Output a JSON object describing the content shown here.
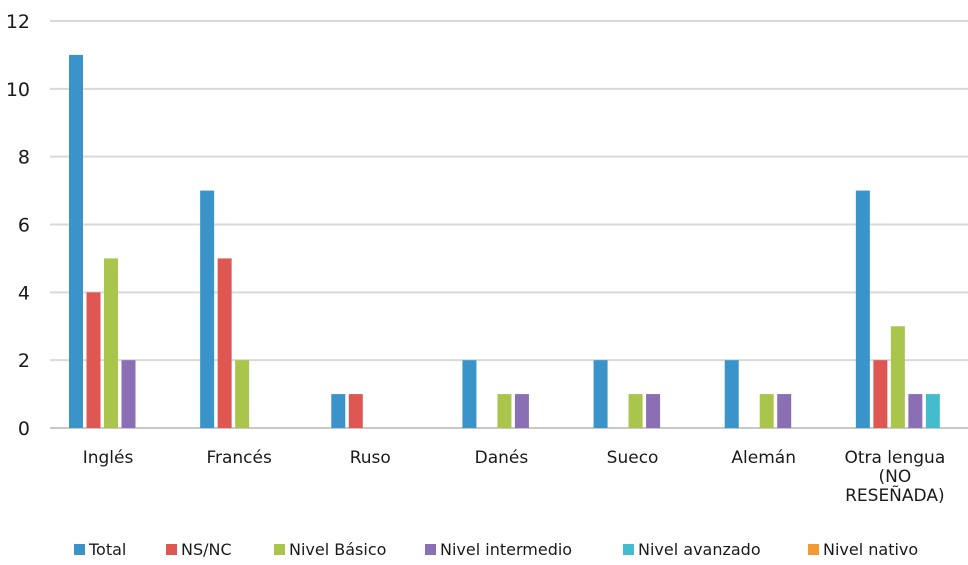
{
  "chart_data": {
    "type": "bar",
    "title": "",
    "xlabel": "",
    "ylabel": "",
    "ylim": [
      0,
      12
    ],
    "yticks": [
      0,
      2,
      4,
      6,
      8,
      10,
      12
    ],
    "grid": true,
    "legend_position": "bottom",
    "categories": [
      [
        "Inglés"
      ],
      [
        "Francés"
      ],
      [
        "Ruso"
      ],
      [
        "Danés"
      ],
      [
        "Sueco"
      ],
      [
        "Alemán"
      ],
      [
        "Otra lengua",
        "(NO",
        "RESEÑADA)"
      ]
    ],
    "series": [
      {
        "name": "Total",
        "color": "#3a93c9",
        "values": [
          11,
          7,
          1,
          2,
          2,
          2,
          7
        ]
      },
      {
        "name": "NS/NC",
        "color": "#df5753",
        "values": [
          4,
          5,
          1,
          0,
          0,
          0,
          2
        ]
      },
      {
        "name": "Nivel Básico",
        "color": "#a9c54c",
        "values": [
          5,
          2,
          0,
          1,
          1,
          1,
          3
        ]
      },
      {
        "name": "Nivel intermedio",
        "color": "#8a6fb4",
        "values": [
          2,
          0,
          0,
          1,
          1,
          1,
          1
        ]
      },
      {
        "name": "Nivel avanzado",
        "color": "#44bccd",
        "values": [
          0,
          0,
          0,
          0,
          0,
          0,
          1
        ]
      },
      {
        "name": "Nivel nativo",
        "color": "#f39a34",
        "values": [
          0,
          0,
          0,
          0,
          0,
          0,
          0
        ]
      }
    ]
  }
}
